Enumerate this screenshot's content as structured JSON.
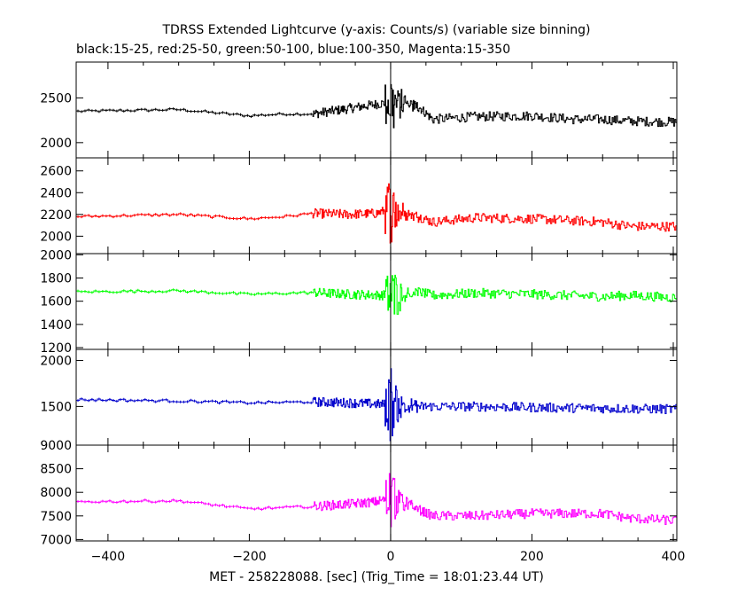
{
  "chart_data": {
    "type": "line",
    "title": "TDRSS Extended Lightcurve (y-axis: Counts/s) (variable size binning)",
    "subtitle": "black:15-25, red:25-50, green:50-100, blue:100-350, Magenta:15-350",
    "xlabel": "MET - 258228088. [sec] (Trig_Time = 18:01:23.44 UT)",
    "ylabel": "",
    "xlim": [
      -445,
      405
    ],
    "xticks": [
      -400,
      -200,
      0,
      200,
      400
    ],
    "trigger_time": 0,
    "panels": [
      {
        "name": "black:15-25",
        "color": "#000000",
        "ylim": [
          1830,
          2900
        ],
        "yticks": [
          2000,
          2500
        ],
        "profile": [
          [
            -445,
            2350
          ],
          [
            -300,
            2370
          ],
          [
            -200,
            2300
          ],
          [
            -150,
            2320
          ],
          [
            -110,
            2320
          ],
          [
            -60,
            2380
          ],
          [
            -20,
            2430
          ],
          [
            0,
            2450
          ],
          [
            40,
            2400
          ],
          [
            60,
            2260
          ],
          [
            120,
            2290
          ],
          [
            200,
            2300
          ],
          [
            260,
            2260
          ],
          [
            300,
            2260
          ],
          [
            340,
            2240
          ],
          [
            405,
            2230
          ]
        ]
      },
      {
        "name": "red:25-50",
        "color": "#ff0000",
        "ylim": [
          1840,
          2720
        ],
        "yticks": [
          2000,
          2200,
          2400,
          2600
        ],
        "profile": [
          [
            -445,
            2180
          ],
          [
            -300,
            2200
          ],
          [
            -200,
            2160
          ],
          [
            -150,
            2180
          ],
          [
            -110,
            2210
          ],
          [
            -60,
            2200
          ],
          [
            -20,
            2210
          ],
          [
            0,
            2250
          ],
          [
            40,
            2180
          ],
          [
            60,
            2130
          ],
          [
            120,
            2170
          ],
          [
            200,
            2160
          ],
          [
            300,
            2130
          ],
          [
            340,
            2090
          ],
          [
            405,
            2090
          ]
        ]
      },
      {
        "name": "green:50-100",
        "color": "#00ff00",
        "ylim": [
          1185,
          2010
        ],
        "yticks": [
          1200,
          1400,
          1600,
          1800,
          2000
        ],
        "profile": [
          [
            -445,
            1680
          ],
          [
            -300,
            1690
          ],
          [
            -200,
            1660
          ],
          [
            -110,
            1675
          ],
          [
            -60,
            1660
          ],
          [
            0,
            1650
          ],
          [
            40,
            1680
          ],
          [
            60,
            1650
          ],
          [
            120,
            1670
          ],
          [
            200,
            1660
          ],
          [
            300,
            1640
          ],
          [
            340,
            1650
          ],
          [
            405,
            1630
          ]
        ]
      },
      {
        "name": "blue:100-350",
        "color": "#0000cc",
        "ylim": [
          1080,
          2120
        ],
        "yticks": [
          1500,
          2000
        ],
        "profile": [
          [
            -445,
            1575
          ],
          [
            -300,
            1560
          ],
          [
            -200,
            1540
          ],
          [
            -110,
            1550
          ],
          [
            -60,
            1540
          ],
          [
            0,
            1520
          ],
          [
            40,
            1500
          ],
          [
            120,
            1500
          ],
          [
            200,
            1490
          ],
          [
            300,
            1480
          ],
          [
            405,
            1470
          ]
        ]
      },
      {
        "name": "Magenta:15-350",
        "color": "#ff00ff",
        "ylim": [
          6970,
          9000
        ],
        "yticks": [
          7000,
          7500,
          8000,
          8500,
          9000
        ],
        "profile": [
          [
            -445,
            7800
          ],
          [
            -300,
            7820
          ],
          [
            -200,
            7650
          ],
          [
            -110,
            7700
          ],
          [
            -60,
            7750
          ],
          [
            -20,
            7800
          ],
          [
            0,
            7900
          ],
          [
            30,
            7700
          ],
          [
            60,
            7500
          ],
          [
            120,
            7500
          ],
          [
            200,
            7550
          ],
          [
            300,
            7550
          ],
          [
            340,
            7450
          ],
          [
            405,
            7400
          ]
        ]
      }
    ]
  }
}
